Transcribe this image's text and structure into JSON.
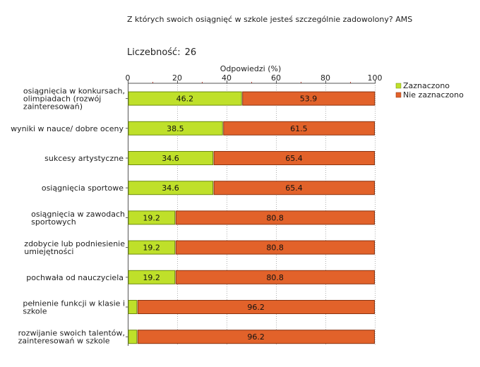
{
  "chart_data": {
    "type": "bar",
    "orientation": "horizontal",
    "stacked": true,
    "title": "Z których swoich osiągnięć w szkole jesteś szczególnie zadowolony? AMS",
    "count_label": "Liczebność:",
    "count_value": "26",
    "xlabel": "Odpowiedzi (%)",
    "xlim": [
      0,
      100
    ],
    "xticks": [
      0,
      20,
      40,
      60,
      80,
      100
    ],
    "legend_position": "top-right",
    "categories": [
      [
        "osiągnięcia w konkursach,",
        "olimpiadach (rozwój",
        "zainteresowań)"
      ],
      [
        "wyniki w nauce/ dobre oceny"
      ],
      [
        "sukcesy artystyczne"
      ],
      [
        "osiągnięcia sportowe"
      ],
      [
        "osiągnięcia w zawodach",
        "sportowych"
      ],
      [
        "zdobycie lub podniesienie",
        "umiejętności"
      ],
      [
        "pochwała od nauczyciela"
      ],
      [
        "pełnienie funkcji w klasie i",
        "szkole"
      ],
      [
        "rozwijanie swoich talentów,",
        "zainteresowań w szkole"
      ]
    ],
    "series": [
      {
        "name": "Zaznaczono",
        "color": "#bfe02a",
        "border": "#6e8c10",
        "values": [
          46.2,
          38.5,
          34.6,
          34.6,
          19.2,
          19.2,
          19.2,
          3.8,
          3.8
        ],
        "labels": [
          "46.2",
          "38.5",
          "34.6",
          "34.6",
          "19.2",
          "19.2",
          "19.2",
          "",
          ""
        ]
      },
      {
        "name": "Nie zaznaczono",
        "color": "#e2622a",
        "border": "#8a3412",
        "values": [
          53.9,
          61.5,
          65.4,
          65.4,
          80.8,
          80.8,
          80.8,
          96.2,
          96.2
        ],
        "labels": [
          "53.9",
          "61.5",
          "65.4",
          "65.4",
          "80.8",
          "80.8",
          "80.8",
          "96.2",
          "96.2"
        ]
      }
    ],
    "grid": true,
    "grid_color": "#b0b0b0",
    "tick_color": "#c0392b"
  }
}
